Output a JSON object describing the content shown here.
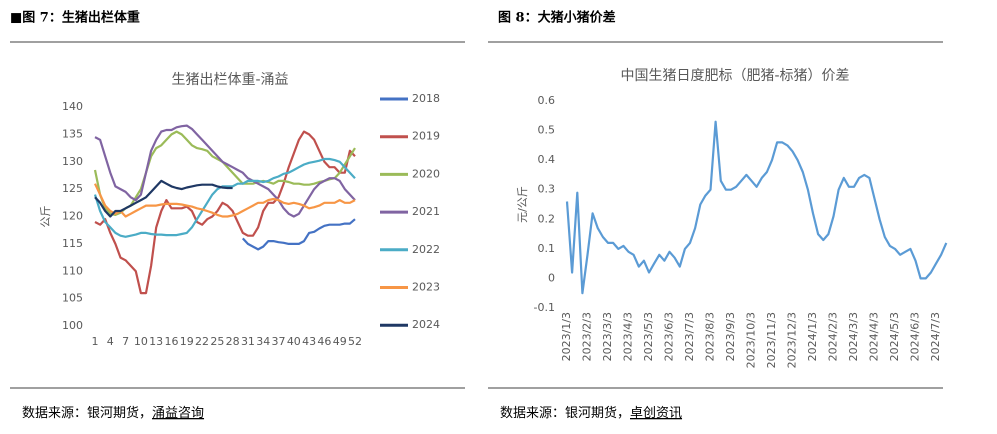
{
  "figures": [
    {
      "caption": "■图 7：生猪出栏体重",
      "source": "数据来源：银河期货，",
      "source_link": "涌益咨询"
    },
    {
      "caption": "图 8：大猪小猪价差",
      "source": "数据来源：银河期货，",
      "source_link": "卓创资讯"
    }
  ],
  "chart_data": [
    {
      "type": "line",
      "title": "生猪出栏体重-涌益",
      "y_label": "公斤",
      "legend": "right",
      "grid": false,
      "categories": [
        "1",
        null,
        null,
        "4",
        null,
        null,
        "7",
        null,
        null,
        "10",
        null,
        null,
        "13",
        null,
        null,
        "16",
        null,
        null,
        "19",
        null,
        null,
        "22",
        null,
        null,
        "25",
        null,
        null,
        "28",
        null,
        null,
        "31",
        null,
        null,
        "34",
        null,
        null,
        "37",
        null,
        null,
        "40",
        null,
        null,
        "43",
        null,
        null,
        "46",
        null,
        null,
        "49",
        null,
        null,
        "52"
      ],
      "ylim": [
        100,
        140
      ],
      "yticks": [
        100,
        105,
        110,
        115,
        120,
        125,
        130,
        135,
        140
      ],
      "series": [
        {
          "name": "2018",
          "color": "#4472c4",
          "values": [
            null,
            null,
            null,
            null,
            null,
            null,
            null,
            null,
            null,
            null,
            null,
            null,
            null,
            null,
            null,
            null,
            null,
            null,
            null,
            null,
            null,
            null,
            null,
            null,
            null,
            null,
            null,
            null,
            null,
            116,
            115,
            114.5,
            114,
            114.5,
            115.5,
            115.5,
            115.3,
            115.2,
            115,
            115,
            115,
            115.5,
            117,
            117.2,
            117.8,
            118.3,
            118.5,
            118.5,
            118.5,
            118.7,
            118.7,
            119.5
          ]
        },
        {
          "name": "2019",
          "color": "#c0504d",
          "values": [
            119,
            118.5,
            119.5,
            117,
            115,
            112.5,
            112,
            111,
            110,
            106,
            106,
            111,
            118,
            121,
            123,
            121.5,
            121.5,
            121.5,
            121.8,
            121,
            119,
            118.5,
            119.5,
            120,
            121,
            122.5,
            122,
            121,
            119,
            117,
            116.5,
            116.5,
            118,
            121,
            122.5,
            122.5,
            123.5,
            126,
            129,
            131.5,
            134,
            135.5,
            135,
            134,
            132,
            130,
            129,
            129,
            128,
            128,
            132,
            131
          ]
        },
        {
          "name": "2020",
          "color": "#9bbb59",
          "values": [
            128.5,
            124,
            121.5,
            120.5,
            120.3,
            120.7,
            121.5,
            122,
            123.5,
            125,
            128,
            131,
            132.5,
            133,
            134,
            135,
            135.5,
            135,
            134,
            133,
            132.5,
            132.3,
            132,
            131,
            130.5,
            130,
            129,
            128,
            127,
            126,
            126,
            126,
            126.3,
            126.5,
            126.3,
            126,
            126.5,
            126.5,
            126.3,
            126,
            126,
            125.8,
            125.8,
            126,
            126.3,
            126.5,
            126.8,
            127,
            128,
            129.5,
            131,
            132.5
          ]
        },
        {
          "name": "2021",
          "color": "#8064a2",
          "values": [
            134.5,
            134,
            131,
            128,
            125.5,
            125,
            124.5,
            123.5,
            123,
            124,
            128,
            132,
            134,
            135.5,
            135.8,
            135.8,
            136.3,
            136.5,
            136.6,
            136,
            135,
            134,
            133,
            132,
            131,
            130,
            129.5,
            129,
            128.5,
            128,
            127,
            126.5,
            126,
            125.5,
            125,
            124,
            123,
            121.5,
            120.5,
            120,
            120.5,
            122,
            123.5,
            125,
            126,
            126.5,
            127,
            127,
            126.5,
            125,
            124,
            123
          ]
        },
        {
          "name": "2022",
          "color": "#4bacc6",
          "values": [
            124,
            121,
            119,
            118,
            117,
            116.5,
            116.3,
            116.5,
            116.7,
            117,
            117,
            116.8,
            116.7,
            116.7,
            116.6,
            116.6,
            116.6,
            116.8,
            117,
            118,
            119.5,
            121,
            122.5,
            124,
            125,
            125.5,
            125.5,
            125.5,
            126,
            126,
            126.5,
            126.5,
            126.5,
            126.3,
            126.5,
            127,
            127.3,
            127.8,
            128,
            128.5,
            129,
            129.5,
            129.8,
            130,
            130.2,
            130.5,
            130.5,
            130.3,
            130,
            129,
            128,
            127
          ]
        },
        {
          "name": "2023",
          "color": "#f79646",
          "values": [
            126,
            124,
            122,
            121,
            120.5,
            121,
            120,
            120.5,
            121,
            121.5,
            122,
            122,
            122,
            122.2,
            122.3,
            122.3,
            122.3,
            122.2,
            122,
            121.8,
            121.5,
            121.3,
            121,
            120.7,
            120.3,
            120,
            120,
            120.2,
            120.5,
            121,
            121.5,
            122,
            122.5,
            122.5,
            123,
            123.2,
            123,
            122.5,
            122.3,
            122.5,
            122.3,
            122,
            121.5,
            121.7,
            122,
            122.5,
            122.5,
            122.5,
            123,
            122.5,
            122.5,
            123
          ]
        },
        {
          "name": "2024",
          "color": "#1f3864",
          "values": [
            123.5,
            122.5,
            121,
            120,
            121,
            121,
            121.5,
            122,
            122.5,
            123,
            123.5,
            124.5,
            125.5,
            126.5,
            126,
            125.5,
            125.2,
            125,
            125.3,
            125.5,
            125.7,
            125.8,
            125.8,
            125.8,
            125.5,
            125.3,
            125.2,
            125.2,
            null,
            null,
            null,
            null,
            null,
            null,
            null,
            null,
            null,
            null,
            null,
            null,
            null,
            null,
            null,
            null,
            null,
            null,
            null,
            null,
            null,
            null,
            null,
            null
          ]
        }
      ]
    },
    {
      "type": "line",
      "title": "中国生猪日度肥标（肥猪-标猪）价差",
      "y_label": "元/公斤",
      "grid": false,
      "color": "#5b9bd5",
      "x_label_rotated": true,
      "categories": [
        "2023/1/3",
        null,
        null,
        null,
        "2023/2/3",
        null,
        null,
        null,
        "2023/3/3",
        null,
        null,
        null,
        "2023/4/3",
        null,
        null,
        null,
        "2023/5/3",
        null,
        null,
        null,
        "2023/6/3",
        null,
        null,
        null,
        "2023/7/3",
        null,
        null,
        null,
        "2023/8/3",
        null,
        null,
        null,
        "2023/9/3",
        null,
        null,
        null,
        "2023/10/3",
        null,
        null,
        null,
        "2023/11/3",
        null,
        null,
        null,
        "2023/12/3",
        null,
        null,
        null,
        "2024/1/3",
        null,
        null,
        null,
        "2024/2/3",
        null,
        null,
        null,
        "2024/3/3",
        null,
        null,
        null,
        "2024/4/3",
        null,
        null,
        null,
        "2024/5/3",
        null,
        null,
        null,
        "2024/6/3",
        null,
        null,
        null,
        "2024/7/3",
        null,
        null
      ],
      "ylim": [
        -0.1,
        0.6
      ],
      "yticks": [
        -0.1,
        0,
        0.1,
        0.2,
        0.3,
        0.4,
        0.5,
        0.6
      ],
      "values": [
        0.26,
        0.02,
        0.29,
        -0.05,
        0.08,
        0.22,
        0.17,
        0.14,
        0.12,
        0.12,
        0.1,
        0.11,
        0.09,
        0.08,
        0.04,
        0.06,
        0.02,
        0.05,
        0.08,
        0.06,
        0.09,
        0.07,
        0.04,
        0.1,
        0.12,
        0.17,
        0.25,
        0.28,
        0.3,
        0.53,
        0.33,
        0.3,
        0.3,
        0.31,
        0.33,
        0.35,
        0.33,
        0.31,
        0.34,
        0.36,
        0.4,
        0.46,
        0.46,
        0.45,
        0.43,
        0.4,
        0.36,
        0.3,
        0.22,
        0.15,
        0.13,
        0.15,
        0.21,
        0.3,
        0.34,
        0.31,
        0.31,
        0.34,
        0.35,
        0.34,
        0.27,
        0.2,
        0.14,
        0.11,
        0.1,
        0.08,
        0.09,
        0.1,
        0.06,
        0.0,
        0.0,
        0.02,
        0.05,
        0.08,
        0.12
      ]
    }
  ]
}
